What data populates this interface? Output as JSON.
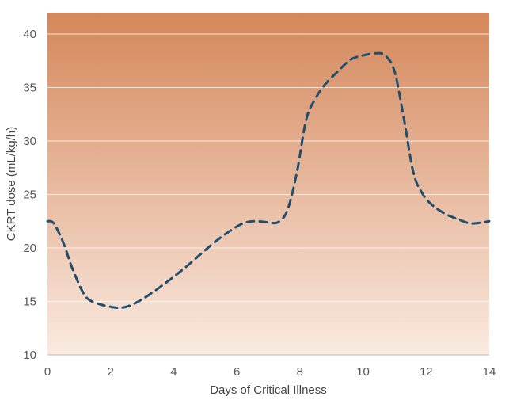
{
  "chart_data": {
    "type": "line",
    "title": "",
    "xlabel": "Days of Critical Illness",
    "ylabel": "CKRT dose (mL/kg/h)",
    "xlim": [
      0,
      14
    ],
    "ylim": [
      10,
      42
    ],
    "xticks": [
      0,
      2,
      4,
      6,
      8,
      10,
      12,
      14
    ],
    "yticks": [
      10,
      15,
      20,
      25,
      30,
      35,
      40
    ],
    "grid": true,
    "legend": "none",
    "background_gradient": {
      "top": "#d4875a",
      "bottom": "#faeae0"
    },
    "series": [
      {
        "style": "dashed",
        "color": "#1f4e6e",
        "x": [
          0,
          0.2,
          0.5,
          0.8,
          1.2,
          1.6,
          2.0,
          2.3,
          2.6,
          3.0,
          3.5,
          4.0,
          4.5,
          5.0,
          5.5,
          6.0,
          6.3,
          6.6,
          7.0,
          7.3,
          7.6,
          7.9,
          8.2,
          8.5,
          8.8,
          9.2,
          9.6,
          10.0,
          10.4,
          10.7,
          11.0,
          11.3,
          11.6,
          11.9,
          12.2,
          12.6,
          13.0,
          13.4,
          13.8,
          14.0
        ],
        "values": [
          22.5,
          22.3,
          20.5,
          18.0,
          15.5,
          14.8,
          14.5,
          14.4,
          14.6,
          15.2,
          16.2,
          17.3,
          18.5,
          19.8,
          21.0,
          22.0,
          22.4,
          22.5,
          22.4,
          22.4,
          23.5,
          27.0,
          32.0,
          34.0,
          35.3,
          36.5,
          37.6,
          38.0,
          38.2,
          38.0,
          36.5,
          32.0,
          27.0,
          25.0,
          24.0,
          23.2,
          22.7,
          22.3,
          22.4,
          22.5
        ]
      }
    ]
  }
}
